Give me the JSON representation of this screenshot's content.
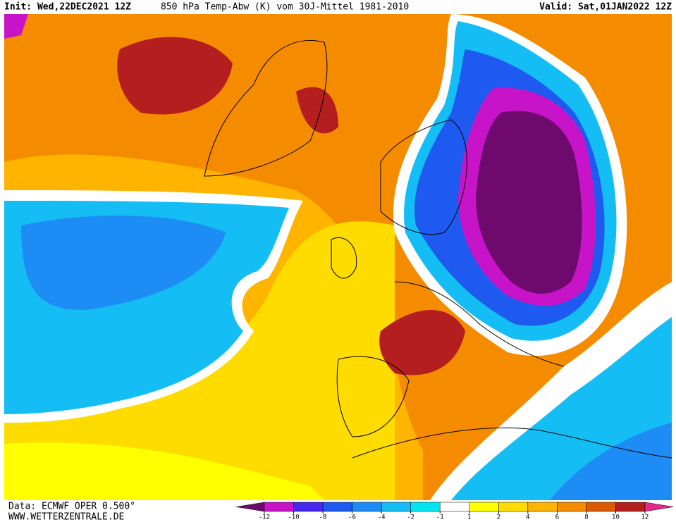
{
  "header": {
    "init": "Init: Wed,22DEC2021 12Z",
    "title": "850 hPa Temp-Abw (K) vom 30J-Mittel 1981-2010",
    "valid": "Valid: Sat,01JAN2022 12Z"
  },
  "footer": {
    "source": "Data: ECMWF OPER 0.500°",
    "site": "WWW.WETTERZENTRALE.DE"
  },
  "colorbar": {
    "colors": [
      "#6e0a6e",
      "#c814c8",
      "#4628f0",
      "#1e5af0",
      "#1e8cf5",
      "#14bef5",
      "#00e6f0",
      "#ffffff",
      "#ffff00",
      "#ffdc00",
      "#ffb400",
      "#f58c00",
      "#dc5a00",
      "#b41e1e",
      "#e6288c"
    ],
    "ticks": [
      -12,
      -10,
      -8,
      -6,
      -4,
      -2,
      -1,
      1,
      2,
      4,
      6,
      8,
      10,
      12
    ]
  }
}
